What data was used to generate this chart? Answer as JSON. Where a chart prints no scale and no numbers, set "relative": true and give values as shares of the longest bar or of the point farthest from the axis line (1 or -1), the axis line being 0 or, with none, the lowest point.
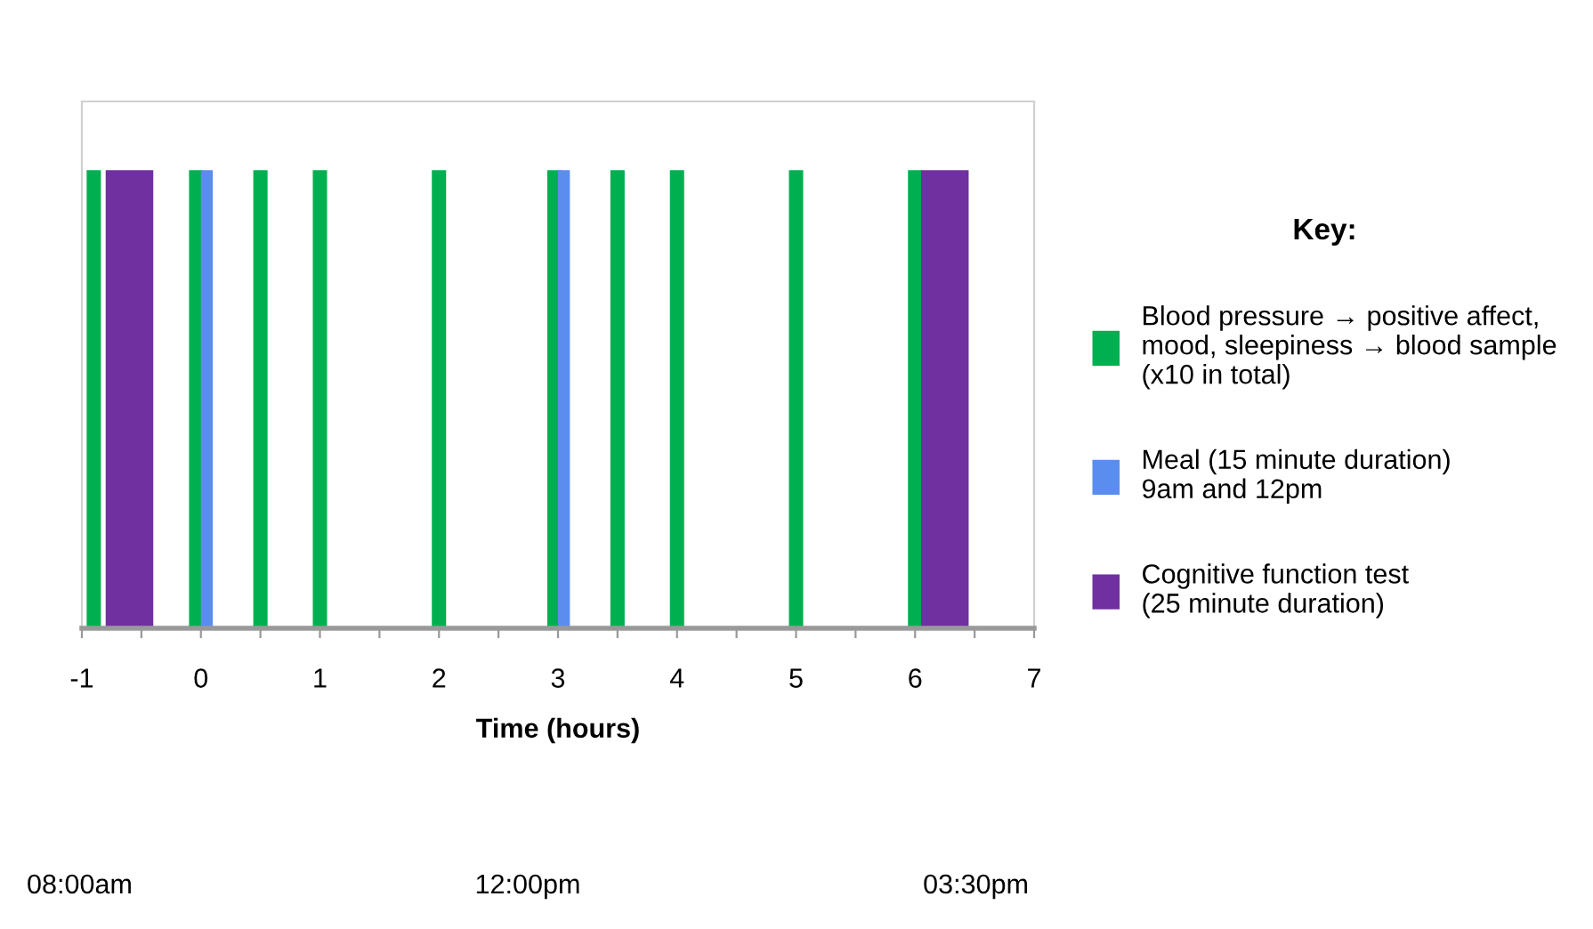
{
  "chart_data": {
    "type": "bar",
    "relative": true,
    "xlabel": "Time (hours)",
    "legend_title": "Key:",
    "legend": "right",
    "grid": false,
    "xlim": [
      -1,
      7
    ],
    "xticks": [
      -1,
      {
        "value": -0.5,
        "label": null
      },
      0,
      {
        "value": 0.5,
        "label": null
      },
      1,
      {
        "value": 1.5,
        "label": null
      },
      2,
      {
        "value": 2.5,
        "label": null
      },
      3,
      {
        "value": 3.5,
        "label": null
      },
      4,
      {
        "value": 4.5,
        "label": null
      },
      5,
      {
        "value": 5.5,
        "label": null
      },
      6,
      {
        "value": 6.5,
        "label": null
      },
      7
    ],
    "series": [
      {
        "name": "Blood pressure → positive affect,\nmood, sleepiness → blood sample\n(x10 in total)",
        "color": "#00b050",
        "x": [
          -0.9,
          -0.04,
          0.5,
          1,
          2,
          2.97,
          3.5,
          4,
          5,
          6
        ],
        "values": [
          1,
          1,
          1,
          1,
          1,
          1,
          1,
          1,
          1,
          1
        ]
      },
      {
        "name": "Meal (15 minute duration)\n9am and 12pm",
        "color": "#5b8def",
        "x": [
          0.05,
          3.05
        ],
        "values": [
          1,
          1
        ]
      },
      {
        "name": "Cognitive function test\n(25 minute duration)",
        "color": "#7030a0",
        "x": [
          -0.6,
          6.25
        ],
        "values": [
          1,
          1
        ]
      }
    ],
    "annotations": [
      "08:00am",
      "12:00pm",
      "03:30pm"
    ]
  }
}
